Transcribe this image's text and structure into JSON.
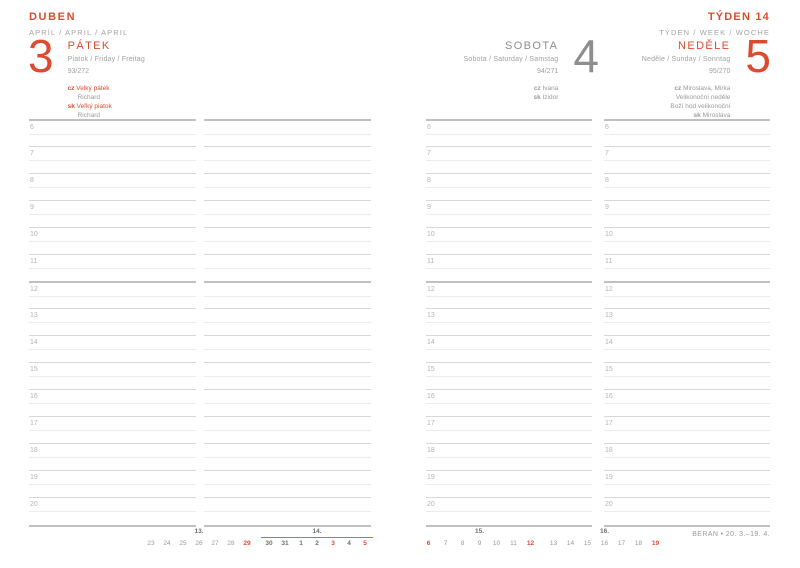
{
  "colors": {
    "red": "#dc4b30",
    "week-line": "#cf6e44",
    "gray-title": "#8e8e8e",
    "gray-sub": "#a2a2a2"
  },
  "hours": [
    "6",
    "7",
    "8",
    "9",
    "10",
    "11",
    "12",
    "13",
    "14",
    "15",
    "16",
    "17",
    "18",
    "19",
    "20"
  ],
  "page_left": {
    "month": {
      "title": "DUBEN",
      "subtitle": "APRÍL / APRIL / APRIL"
    },
    "day": {
      "number": "3",
      "title": "PÁTEK",
      "subtitle": "Piatok / Friday / Freitag",
      "ordinal": "93/272",
      "names": [
        {
          "prefix": "cz",
          "text": "Velký pátek",
          "style": "holiday"
        },
        {
          "prefix": "",
          "text": "Richard",
          "style": "name"
        },
        {
          "prefix": "sk",
          "text": "Veľký piatok",
          "style": "holiday"
        },
        {
          "prefix": "",
          "text": "Richard",
          "style": "name"
        }
      ]
    },
    "minical": {
      "weeks": [
        {
          "label": "13.",
          "current": false,
          "days": [
            {
              "d": "23"
            },
            {
              "d": "24"
            },
            {
              "d": "25"
            },
            {
              "d": "26"
            },
            {
              "d": "27"
            },
            {
              "d": "28"
            },
            {
              "d": "29",
              "red": true
            }
          ]
        },
        {
          "label": "14.",
          "current": true,
          "days": [
            {
              "d": "30"
            },
            {
              "d": "31"
            },
            {
              "d": "1"
            },
            {
              "d": "2"
            },
            {
              "d": "3",
              "red": true
            },
            {
              "d": "4"
            },
            {
              "d": "5",
              "red": true
            }
          ]
        }
      ]
    }
  },
  "page_right": {
    "week": {
      "title": "TÝDEN 14",
      "subtitle": "TÝDEN / WEEK / WOCHE"
    },
    "saturday": {
      "number": "4",
      "title": "SOBOTA",
      "subtitle": "Sobota / Saturday / Samstag",
      "ordinal": "94/271",
      "names": [
        {
          "prefix": "cz",
          "text": "Ivana",
          "style": "name"
        },
        {
          "prefix": "sk",
          "text": "Izidor",
          "style": "name"
        }
      ]
    },
    "sunday": {
      "number": "5",
      "title": "NEDĚLE",
      "subtitle": "Neděle / Sunday / Sonntag",
      "ordinal": "95/270",
      "names": [
        {
          "prefix": "cz",
          "text": "Miroslava, Mirka",
          "style": "name"
        },
        {
          "prefix": "",
          "text": "Velikonoční neděle",
          "style": "name"
        },
        {
          "prefix": "",
          "text": "Boží hod velikonoční",
          "style": "name"
        },
        {
          "prefix": "sk",
          "text": "Miroslava",
          "style": "name"
        }
      ]
    },
    "minical": {
      "weeks": [
        {
          "label": "15.",
          "current": false,
          "days": [
            {
              "d": "6",
              "red": true
            },
            {
              "d": "7"
            },
            {
              "d": "8"
            },
            {
              "d": "9"
            },
            {
              "d": "10"
            },
            {
              "d": "11"
            },
            {
              "d": "12",
              "red": true
            }
          ]
        },
        {
          "label": "16.",
          "current": false,
          "days": [
            {
              "d": "13"
            },
            {
              "d": "14"
            },
            {
              "d": "15"
            },
            {
              "d": "16"
            },
            {
              "d": "17"
            },
            {
              "d": "18"
            },
            {
              "d": "19",
              "red": true
            }
          ]
        }
      ]
    },
    "zodiac": "BERAN • 20. 3.–19. 4."
  }
}
